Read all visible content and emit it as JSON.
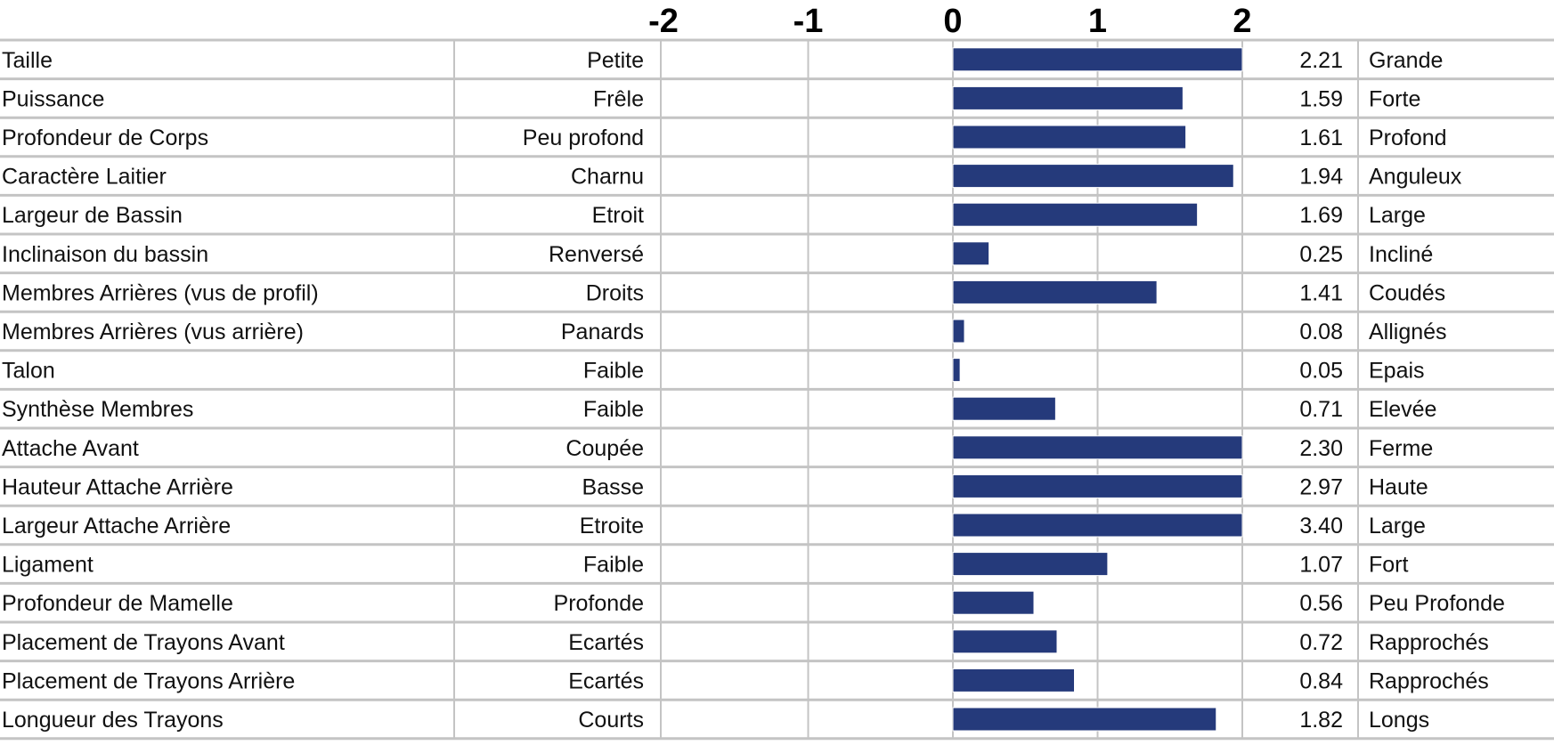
{
  "chart_data": {
    "type": "bar",
    "orientation": "horizontal",
    "title": "",
    "xlabel": "",
    "ylabel": "",
    "xlim": [
      -2,
      2
    ],
    "xticks": [
      "-2",
      "-1",
      "0",
      "1",
      "2"
    ],
    "grid": true,
    "bar_color": "#253a7b",
    "rows": [
      {
        "trait": "Taille",
        "low": "Petite",
        "value": 2.21,
        "label": "2.21",
        "high": "Grande"
      },
      {
        "trait": "Puissance",
        "low": "Frêle",
        "value": 1.59,
        "label": "1.59",
        "high": "Forte"
      },
      {
        "trait": "Profondeur de Corps",
        "low": "Peu profond",
        "value": 1.61,
        "label": "1.61",
        "high": "Profond"
      },
      {
        "trait": "Caractère Laitier",
        "low": "Charnu",
        "value": 1.94,
        "label": "1.94",
        "high": "Anguleux"
      },
      {
        "trait": "Largeur de Bassin",
        "low": "Etroit",
        "value": 1.69,
        "label": "1.69",
        "high": "Large"
      },
      {
        "trait": "Inclinaison du bassin",
        "low": "Renversé",
        "value": 0.25,
        "label": "0.25",
        "high": "Incliné"
      },
      {
        "trait": "Membres Arrières (vus de profil)",
        "low": "Droits",
        "value": 1.41,
        "label": "1.41",
        "high": "Coudés"
      },
      {
        "trait": "Membres Arrières (vus arrière)",
        "low": "Panards",
        "value": 0.08,
        "label": "0.08",
        "high": "Allignés"
      },
      {
        "trait": "Talon",
        "low": "Faible",
        "value": 0.05,
        "label": "0.05",
        "high": "Epais"
      },
      {
        "trait": "Synthèse Membres",
        "low": "Faible",
        "value": 0.71,
        "label": "0.71",
        "high": "Elevée"
      },
      {
        "trait": "Attache Avant",
        "low": "Coupée",
        "value": 2.3,
        "label": "2.30",
        "high": "Ferme"
      },
      {
        "trait": "Hauteur Attache Arrière",
        "low": "Basse",
        "value": 2.97,
        "label": "2.97",
        "high": "Haute"
      },
      {
        "trait": "Largeur Attache Arrière",
        "low": "Etroite",
        "value": 3.4,
        "label": "3.40",
        "high": "Large"
      },
      {
        "trait": "Ligament",
        "low": "Faible",
        "value": 1.07,
        "label": "1.07",
        "high": "Fort"
      },
      {
        "trait": "Profondeur de Mamelle",
        "low": "Profonde",
        "value": 0.56,
        "label": "0.56",
        "high": "Peu Profonde"
      },
      {
        "trait": "Placement de Trayons Avant",
        "low": "Ecartés",
        "value": 0.72,
        "label": "0.72",
        "high": "Rapprochés"
      },
      {
        "trait": "Placement de Trayons Arrière",
        "low": "Ecartés",
        "value": 0.84,
        "label": "0.84",
        "high": "Rapprochés"
      },
      {
        "trait": "Longueur des Trayons",
        "low": "Courts",
        "value": 1.82,
        "label": "1.82",
        "high": "Longs"
      }
    ]
  }
}
